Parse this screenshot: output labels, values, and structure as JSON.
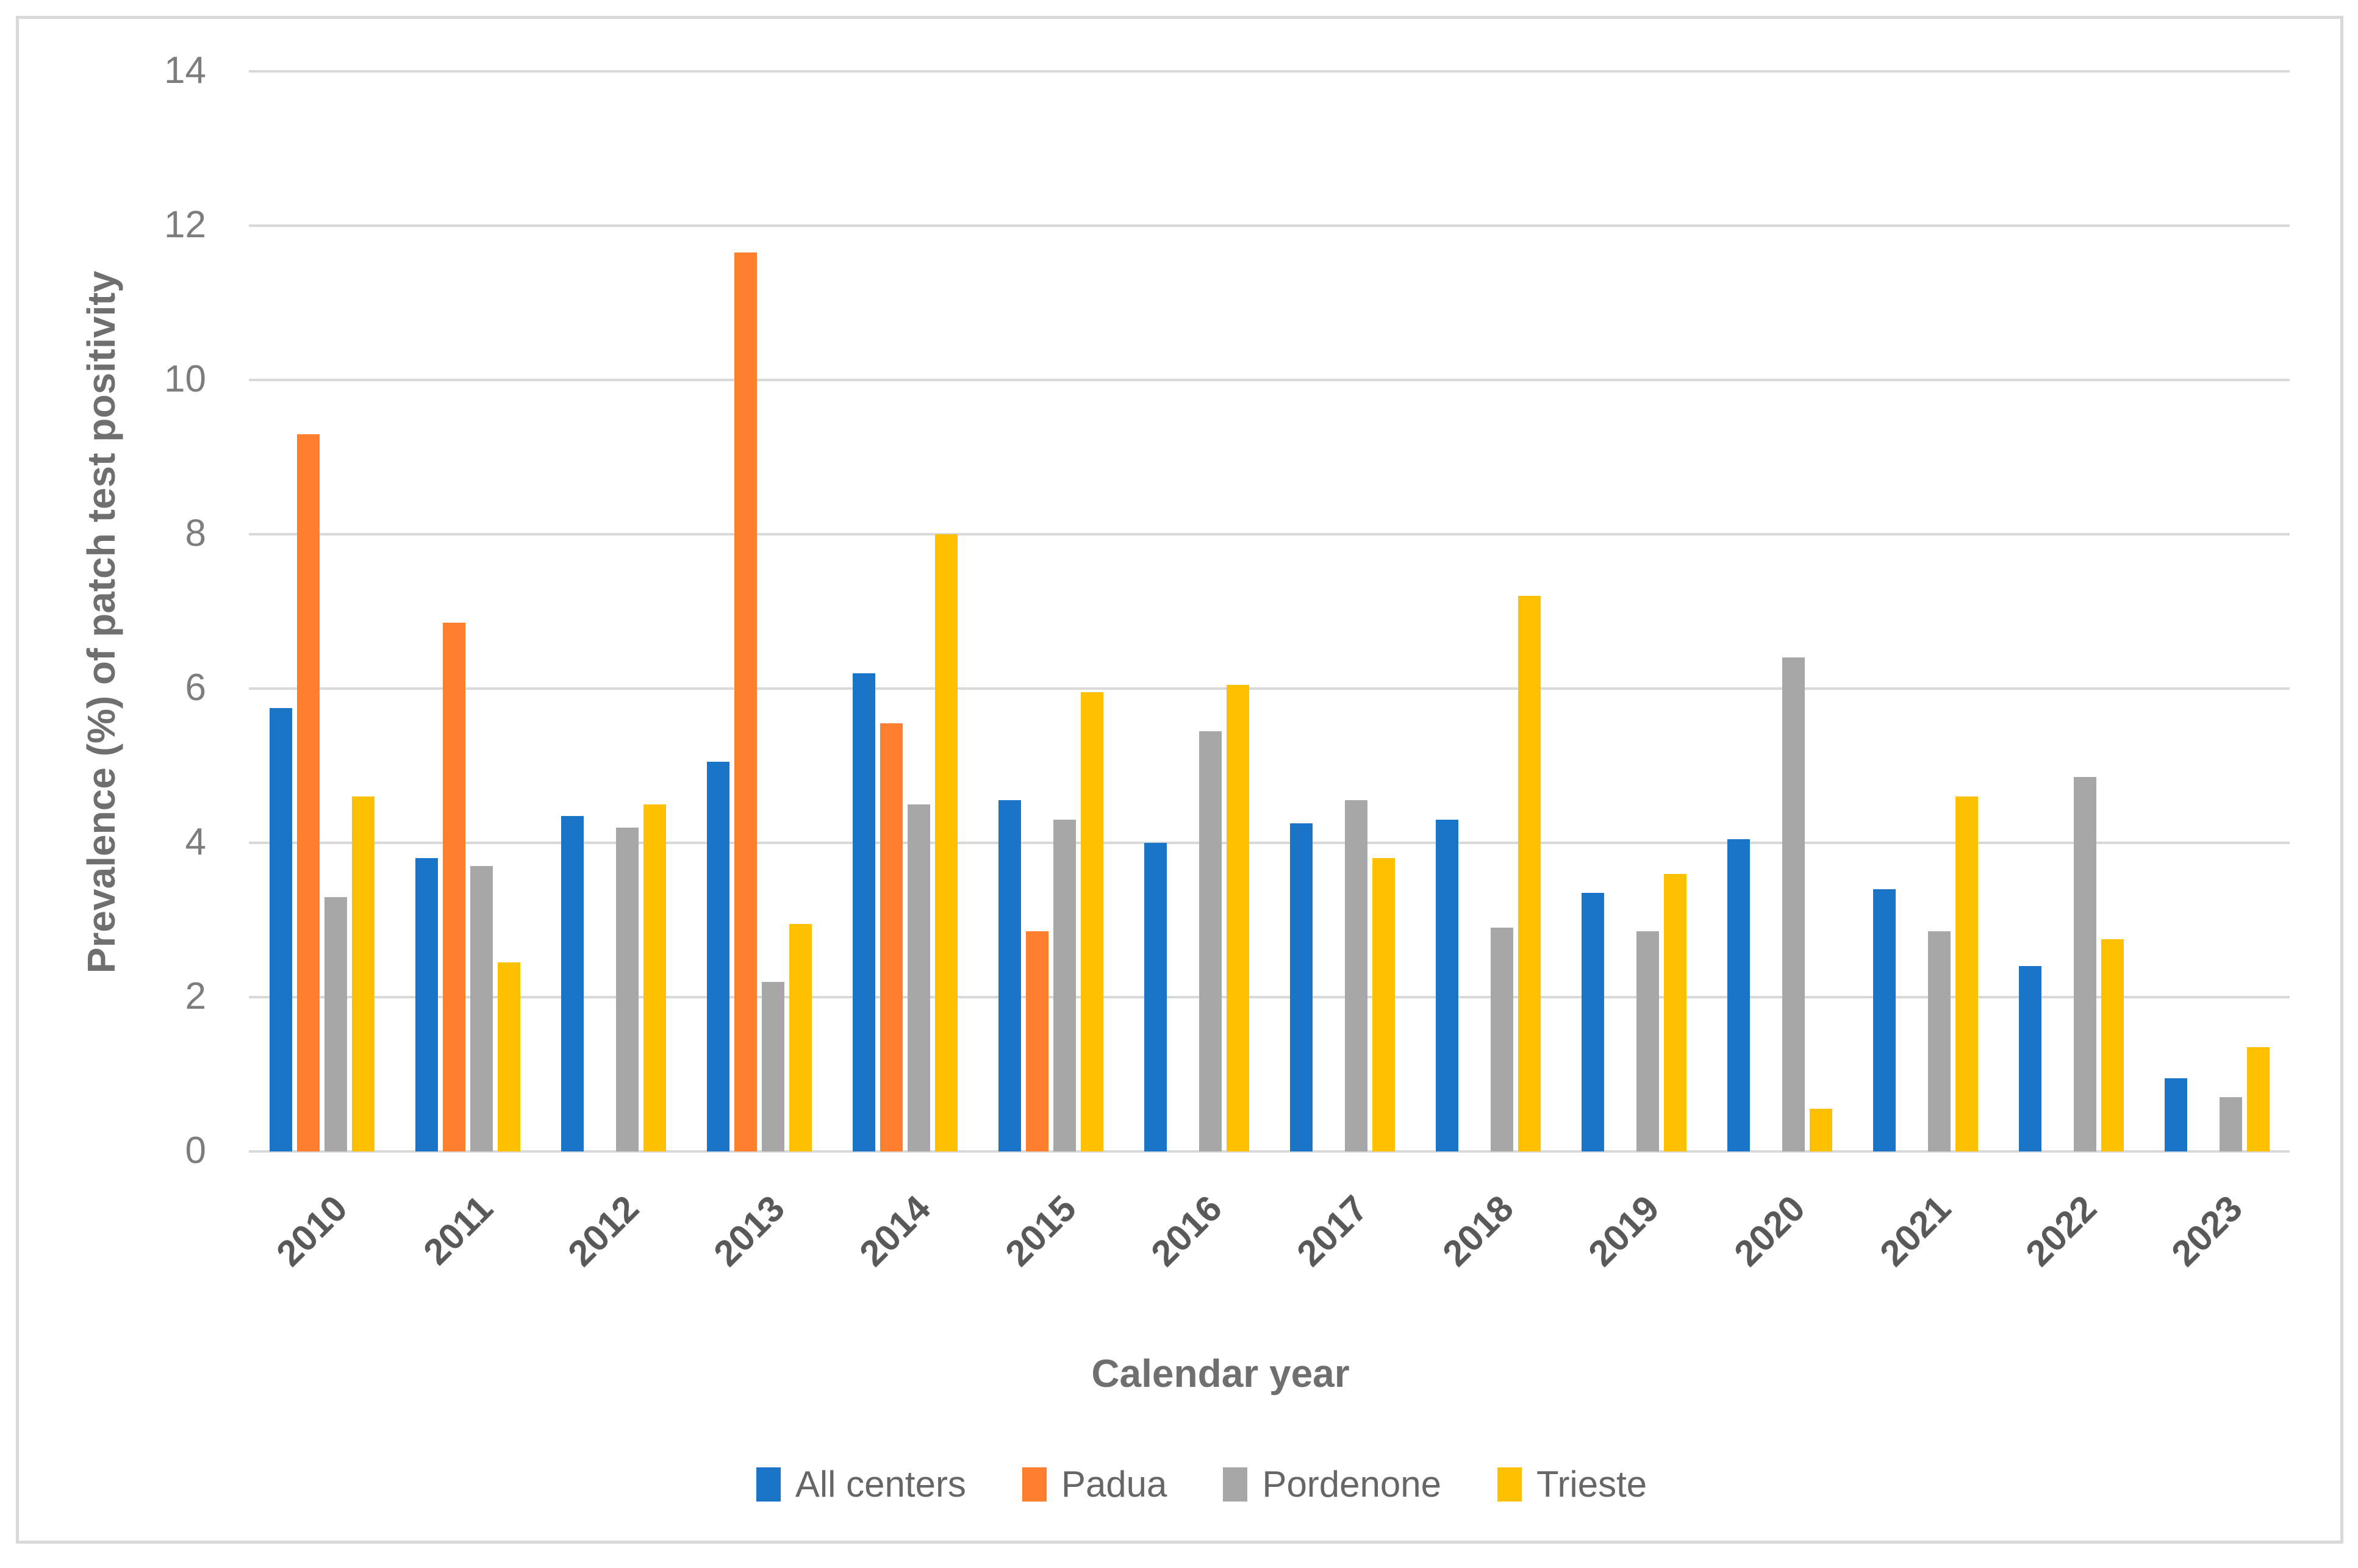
{
  "chart_data": {
    "type": "bar",
    "title": "",
    "xlabel": "Calendar year",
    "ylabel": "Prevalence (%) of patch test positivity",
    "ylim": [
      0,
      14
    ],
    "yticks": [
      0,
      2,
      4,
      6,
      8,
      10,
      12,
      14
    ],
    "grid": true,
    "legend_position": "bottom",
    "categories": [
      "2010",
      "2011",
      "2012",
      "2013",
      "2014",
      "2015",
      "2016",
      "2017",
      "2018",
      "2019",
      "2020",
      "2021",
      "2022",
      "2023"
    ],
    "series": [
      {
        "name": "All centers",
        "color": "#1A74C8",
        "values": [
          5.75,
          3.8,
          4.35,
          5.05,
          6.2,
          4.55,
          4.0,
          4.25,
          4.3,
          3.35,
          4.05,
          3.4,
          2.4,
          0.95
        ]
      },
      {
        "name": "Padua",
        "color": "#FD7E2C",
        "values": [
          9.3,
          6.85,
          null,
          11.65,
          5.55,
          2.85,
          null,
          null,
          null,
          null,
          null,
          null,
          null,
          null
        ]
      },
      {
        "name": "Pordenone",
        "color": "#A7A7A7",
        "values": [
          3.3,
          3.7,
          4.2,
          2.2,
          4.5,
          4.3,
          5.45,
          4.55,
          2.9,
          2.85,
          6.4,
          2.85,
          4.85,
          0.7
        ]
      },
      {
        "name": "Trieste",
        "color": "#FFC000",
        "values": [
          4.6,
          2.45,
          4.5,
          2.95,
          8.0,
          5.95,
          6.05,
          3.8,
          7.2,
          3.6,
          0.55,
          4.6,
          2.75,
          1.35
        ]
      }
    ],
    "gridline_color": "#D9D9D9"
  }
}
